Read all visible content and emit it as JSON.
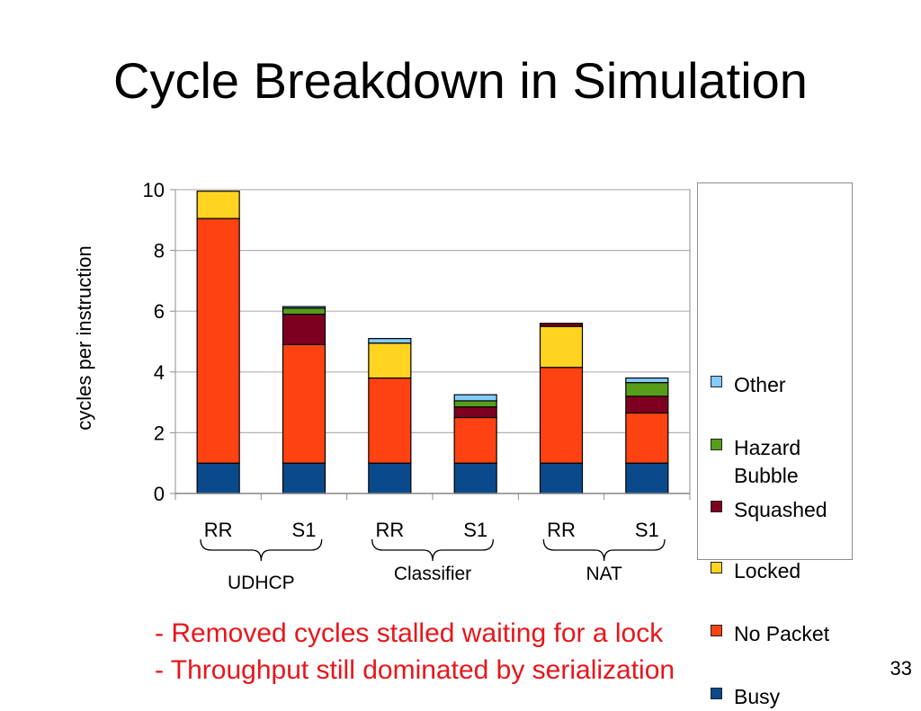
{
  "slide": {
    "title": "Cycle Breakdown in Simulation",
    "notes": [
      "- Removed cycles stalled waiting for a lock",
      "- Throughput still dominated by serialization"
    ],
    "page_number": "33"
  },
  "chart_data": {
    "type": "bar",
    "stacked": true,
    "title": "",
    "xlabel": "",
    "ylabel": "cycles per instruction",
    "ylim": [
      0,
      10
    ],
    "yticks": [
      0,
      2,
      4,
      6,
      8,
      10
    ],
    "grid": true,
    "legend": "right",
    "categories": [
      "RR",
      "S1",
      "RR",
      "S1",
      "RR",
      "S1"
    ],
    "groups": [
      {
        "name": "UDHCP",
        "categories": [
          0,
          1
        ]
      },
      {
        "name": "Classifier",
        "categories": [
          2,
          3
        ]
      },
      {
        "name": "NAT",
        "categories": [
          4,
          5
        ]
      }
    ],
    "series": [
      {
        "name": "Busy",
        "color": "#0a4a8c",
        "values": [
          1.0,
          1.0,
          1.0,
          1.0,
          1.0,
          1.0
        ]
      },
      {
        "name": "No Packet",
        "color": "#ff4212",
        "values": [
          8.05,
          3.9,
          2.8,
          1.5,
          3.15,
          1.65
        ]
      },
      {
        "name": "Locked",
        "color": "#ffd320",
        "values": [
          0.9,
          0.0,
          1.15,
          0.0,
          1.35,
          0.0
        ]
      },
      {
        "name": "Squashed",
        "color": "#7e0021",
        "values": [
          0.0,
          1.0,
          0.0,
          0.35,
          0.1,
          0.55
        ]
      },
      {
        "name": "Hazard Bubble",
        "color": "#579d1c",
        "values": [
          0.0,
          0.2,
          0.0,
          0.2,
          0.0,
          0.45
        ]
      },
      {
        "name": "Other",
        "color": "#83caff",
        "values": [
          0.0,
          0.05,
          0.15,
          0.2,
          0.0,
          0.15
        ]
      }
    ]
  }
}
